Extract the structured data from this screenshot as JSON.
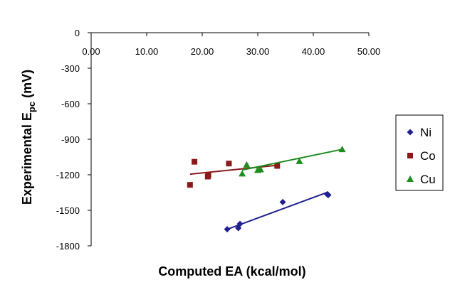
{
  "chart_data": {
    "type": "scatter",
    "title": "",
    "xlabel": "Computed EA (kcal/mol)",
    "ylabel_main": "Experimental E",
    "ylabel_sub": "pc",
    "ylabel_suffix": " (mV)",
    "xlim": [
      0,
      50
    ],
    "ylim": [
      -1800,
      0
    ],
    "xticks": [
      0,
      10,
      20,
      30,
      40,
      50
    ],
    "yticks": [
      0,
      -300,
      -600,
      -900,
      -1200,
      -1500,
      -1800
    ],
    "xtick_labels": [
      "0.00",
      "10.00",
      "20.00",
      "30.00",
      "40.00",
      "50.00"
    ],
    "ytick_labels": [
      "0",
      "-300",
      "-600",
      "-900",
      "-1200",
      "-1500",
      "-1800"
    ],
    "x_axis_position": "top",
    "legend_position": "right",
    "series": [
      {
        "name": "Ni",
        "marker": "diamond",
        "color": "#1f1f8f",
        "points": [
          [
            24.5,
            -1660
          ],
          [
            26.5,
            -1650
          ],
          [
            26.8,
            -1615
          ],
          [
            34.5,
            -1430
          ],
          [
            42.5,
            -1365
          ],
          [
            42.7,
            -1370
          ]
        ],
        "trendline": [
          [
            24.5,
            -1660
          ],
          [
            42.7,
            -1345
          ]
        ]
      },
      {
        "name": "Co",
        "marker": "square",
        "color": "#8b1a1a",
        "points": [
          [
            17.8,
            -1285
          ],
          [
            18.6,
            -1090
          ],
          [
            21.0,
            -1215
          ],
          [
            21.1,
            -1205
          ],
          [
            24.8,
            -1105
          ],
          [
            33.5,
            -1125
          ]
        ],
        "trendline": [
          [
            17.8,
            -1195
          ],
          [
            33.5,
            -1120
          ]
        ]
      },
      {
        "name": "Cu",
        "marker": "triangle",
        "color": "#1e8c1e",
        "points": [
          [
            27.2,
            -1190
          ],
          [
            28.0,
            -1115
          ],
          [
            30.0,
            -1160
          ],
          [
            30.5,
            -1155
          ],
          [
            37.5,
            -1085
          ],
          [
            45.2,
            -985
          ]
        ],
        "trendline": [
          [
            27.2,
            -1160
          ],
          [
            45.2,
            -985
          ]
        ]
      }
    ]
  }
}
